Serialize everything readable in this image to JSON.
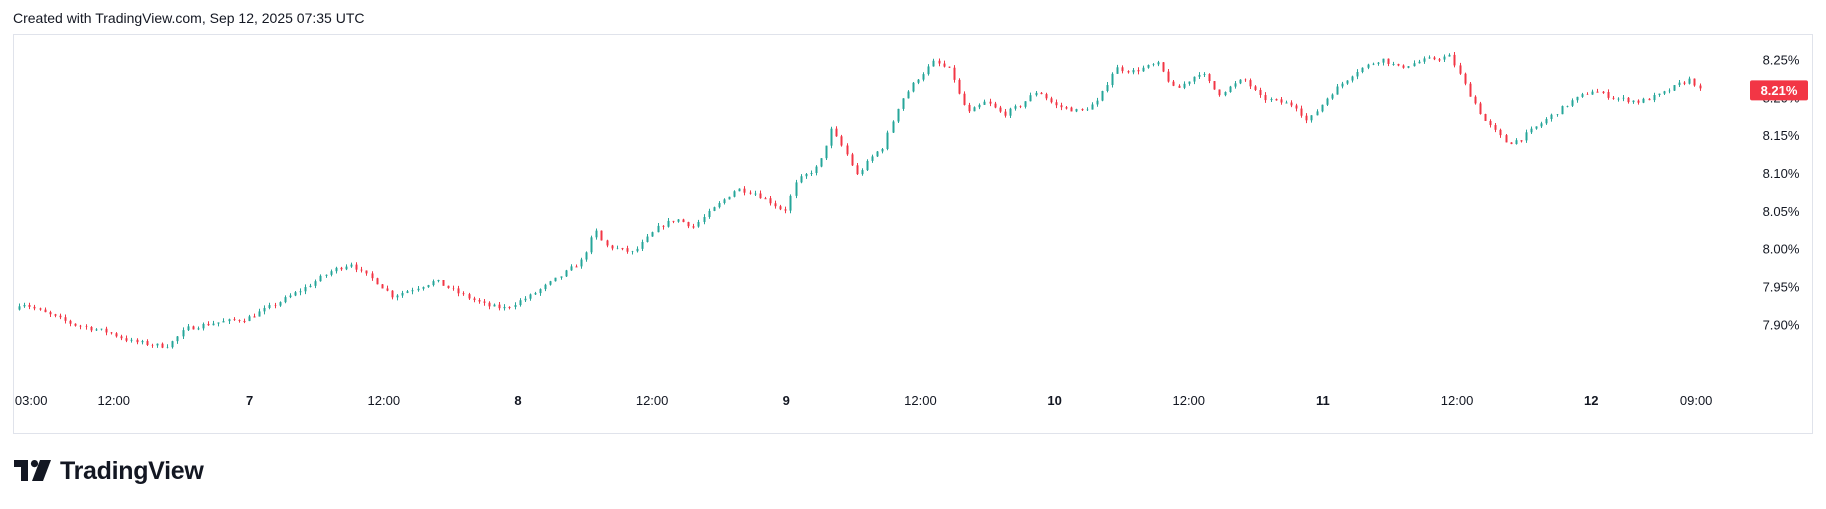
{
  "header": {
    "text": "Created with TradingView.com, Sep 12, 2025 07:35 UTC"
  },
  "logo": {
    "name": "TradingView"
  },
  "colors": {
    "up": "#26a69a",
    "down": "#f23645",
    "axis_text": "#131722",
    "border": "#e0e3eb"
  },
  "chart_data": {
    "type": "candlestick",
    "title": "",
    "ylim": [
      7.86,
      8.27
    ],
    "y_ticks": [
      {
        "value": 7.9,
        "label": "7.90%"
      },
      {
        "value": 7.95,
        "label": "7.95%"
      },
      {
        "value": 8.0,
        "label": "8.00%"
      },
      {
        "value": 8.05,
        "label": "8.05%"
      },
      {
        "value": 8.1,
        "label": "8.10%"
      },
      {
        "value": 8.15,
        "label": "8.15%"
      },
      {
        "value": 8.2,
        "label": "8.20%"
      },
      {
        "value": 8.25,
        "label": "8.25%"
      }
    ],
    "x_ticks": [
      {
        "label": "03:00",
        "pos": 0.01,
        "bold": false
      },
      {
        "label": "12:00",
        "pos": 0.058,
        "bold": false
      },
      {
        "label": "7",
        "pos": 0.137,
        "bold": true
      },
      {
        "label": "12:00",
        "pos": 0.215,
        "bold": false
      },
      {
        "label": "8",
        "pos": 0.293,
        "bold": true
      },
      {
        "label": "12:00",
        "pos": 0.371,
        "bold": false
      },
      {
        "label": "9",
        "pos": 0.449,
        "bold": true
      },
      {
        "label": "12:00",
        "pos": 0.527,
        "bold": false
      },
      {
        "label": "10",
        "pos": 0.605,
        "bold": true
      },
      {
        "label": "12:00",
        "pos": 0.683,
        "bold": false
      },
      {
        "label": "11",
        "pos": 0.761,
        "bold": true
      },
      {
        "label": "12:00",
        "pos": 0.839,
        "bold": false
      },
      {
        "label": "12",
        "pos": 0.917,
        "bold": true
      },
      {
        "label": "09:00",
        "pos": 0.978,
        "bold": false
      }
    ],
    "last_price": {
      "value": 8.21,
      "label": "8.21%"
    },
    "close_path": [
      [
        0.0,
        7.92
      ],
      [
        0.004,
        7.93
      ],
      [
        0.015,
        7.918
      ],
      [
        0.035,
        7.9
      ],
      [
        0.055,
        7.89
      ],
      [
        0.068,
        7.878
      ],
      [
        0.085,
        7.872
      ],
      [
        0.09,
        7.873
      ],
      [
        0.1,
        7.895
      ],
      [
        0.115,
        7.902
      ],
      [
        0.135,
        7.908
      ],
      [
        0.15,
        7.925
      ],
      [
        0.17,
        7.95
      ],
      [
        0.185,
        7.972
      ],
      [
        0.197,
        7.982
      ],
      [
        0.2,
        7.972
      ],
      [
        0.21,
        7.958
      ],
      [
        0.22,
        7.938
      ],
      [
        0.235,
        7.95
      ],
      [
        0.245,
        7.958
      ],
      [
        0.26,
        7.94
      ],
      [
        0.275,
        7.925
      ],
      [
        0.285,
        7.922
      ],
      [
        0.3,
        7.938
      ],
      [
        0.315,
        7.96
      ],
      [
        0.33,
        7.985
      ],
      [
        0.338,
        8.025
      ],
      [
        0.343,
        8.005
      ],
      [
        0.36,
        7.995
      ],
      [
        0.375,
        8.03
      ],
      [
        0.385,
        8.04
      ],
      [
        0.395,
        8.03
      ],
      [
        0.405,
        8.05
      ],
      [
        0.42,
        8.08
      ],
      [
        0.43,
        8.075
      ],
      [
        0.44,
        8.062
      ],
      [
        0.448,
        8.05
      ],
      [
        0.455,
        8.09
      ],
      [
        0.468,
        8.11
      ],
      [
        0.475,
        8.158
      ],
      [
        0.483,
        8.13
      ],
      [
        0.49,
        8.098
      ],
      [
        0.5,
        8.125
      ],
      [
        0.505,
        8.135
      ],
      [
        0.515,
        8.195
      ],
      [
        0.525,
        8.225
      ],
      [
        0.535,
        8.248
      ],
      [
        0.545,
        8.235
      ],
      [
        0.55,
        8.2
      ],
      [
        0.555,
        8.18
      ],
      [
        0.565,
        8.195
      ],
      [
        0.575,
        8.178
      ],
      [
        0.585,
        8.19
      ],
      [
        0.595,
        8.21
      ],
      [
        0.605,
        8.19
      ],
      [
        0.62,
        8.182
      ],
      [
        0.63,
        8.195
      ],
      [
        0.64,
        8.24
      ],
      [
        0.65,
        8.235
      ],
      [
        0.665,
        8.245
      ],
      [
        0.675,
        8.21
      ],
      [
        0.69,
        8.235
      ],
      [
        0.7,
        8.205
      ],
      [
        0.715,
        8.225
      ],
      [
        0.725,
        8.2
      ],
      [
        0.735,
        8.195
      ],
      [
        0.745,
        8.19
      ],
      [
        0.752,
        8.168
      ],
      [
        0.765,
        8.205
      ],
      [
        0.78,
        8.235
      ],
      [
        0.795,
        8.252
      ],
      [
        0.805,
        8.24
      ],
      [
        0.82,
        8.25
      ],
      [
        0.835,
        8.255
      ],
      [
        0.845,
        8.21
      ],
      [
        0.855,
        8.17
      ],
      [
        0.868,
        8.14
      ],
      [
        0.875,
        8.145
      ],
      [
        0.89,
        8.17
      ],
      [
        0.905,
        8.195
      ],
      [
        0.918,
        8.21
      ],
      [
        0.93,
        8.2
      ],
      [
        0.945,
        8.195
      ],
      [
        0.958,
        8.205
      ],
      [
        0.968,
        8.218
      ],
      [
        0.975,
        8.225
      ],
      [
        0.98,
        8.21
      ]
    ]
  }
}
